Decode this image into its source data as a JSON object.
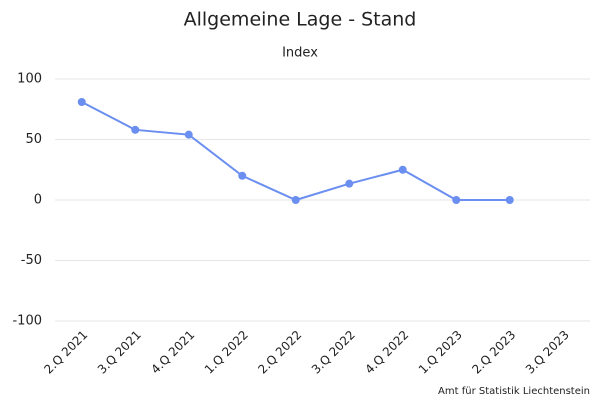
{
  "chart_data": {
    "type": "line",
    "title": "Allgemeine Lage - Stand",
    "subtitle": "Index",
    "categories": [
      "2.Q 2021",
      "3.Q 2021",
      "4.Q 2021",
      "1.Q 2022",
      "2.Q 2022",
      "3.Q 2022",
      "4.Q 2022",
      "1.Q 2023",
      "2.Q 2023",
      "3.Q 2023"
    ],
    "values": [
      81,
      58,
      54,
      20,
      0,
      13.5,
      25,
      0,
      0,
      null
    ],
    "color": "#6b8ff0",
    "ylim": [
      -100,
      100
    ],
    "yticks": [
      -100,
      -50,
      0,
      50,
      100
    ],
    "grid": true,
    "credit": "Amt für Statistik Liechtenstein"
  }
}
